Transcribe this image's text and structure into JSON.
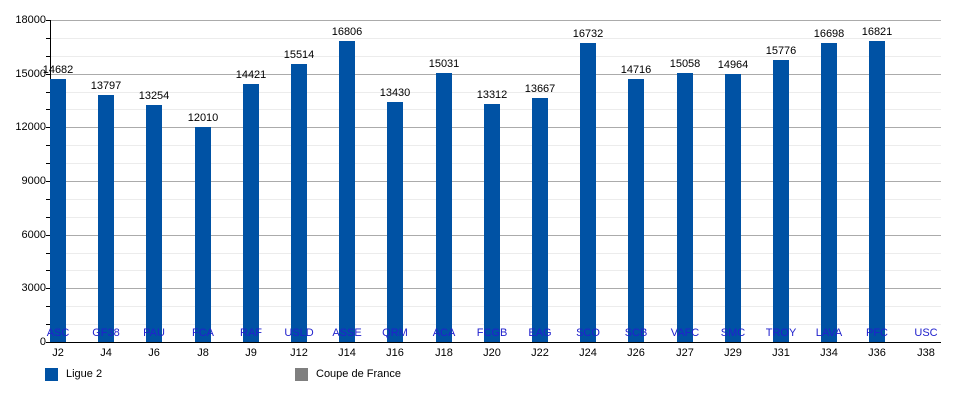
{
  "chart_data": {
    "type": "bar",
    "title": "",
    "categories": [
      "ASC",
      "GF38",
      "PAU",
      "FCA",
      "RAF",
      "USLD",
      "ASSE",
      "QRM",
      "ACA",
      "FCGB",
      "EAG",
      "SCO",
      "SCB",
      "VAFC",
      "SMC",
      "TROY",
      "LAVA",
      "PFC",
      "USC"
    ],
    "matchdays": [
      "J2",
      "J4",
      "J6",
      "J8",
      "J9",
      "J12",
      "J14",
      "J16",
      "J18",
      "J20",
      "J22",
      "J24",
      "J26",
      "J27",
      "J29",
      "J31",
      "J34",
      "J36",
      "J38"
    ],
    "series": [
      {
        "name": "Ligue 2",
        "color": "#0052a4",
        "values": [
          14682,
          13797,
          13254,
          12010,
          14421,
          15514,
          16806,
          13430,
          15031,
          13312,
          13667,
          16732,
          14716,
          15058,
          14964,
          15776,
          16698,
          16821,
          null
        ]
      },
      {
        "name": "Coupe de France",
        "color": "#7f7f7f",
        "values": [
          null,
          null,
          null,
          null,
          null,
          null,
          null,
          null,
          null,
          null,
          null,
          null,
          null,
          null,
          null,
          null,
          null,
          null,
          null
        ]
      }
    ],
    "xlabel": "",
    "ylabel": "",
    "ylim": [
      0,
      18000
    ],
    "y_major_step": 3000,
    "y_minor_step": 1000,
    "y_tick_labels": [
      "0",
      "3000",
      "6000",
      "9000",
      "12000",
      "15000",
      "18000"
    ],
    "grid": true,
    "legend_position": "bottom",
    "category_label_color": "#2121cd",
    "value_label_color": "#000000"
  },
  "legend": {
    "items": [
      {
        "label": "Ligue 2",
        "color": "#0052a4"
      },
      {
        "label": "Coupe de France",
        "color": "#7f7f7f"
      }
    ]
  }
}
